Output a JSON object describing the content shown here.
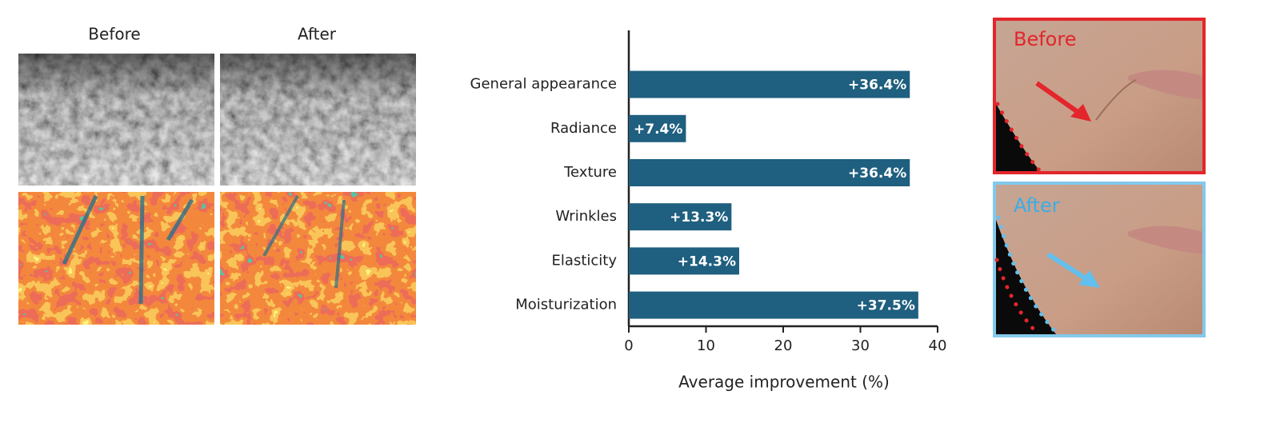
{
  "left_panel": {
    "labels": [
      "Before",
      "After"
    ]
  },
  "chart_data": {
    "type": "bar",
    "orientation": "horizontal",
    "categories": [
      "General appearance",
      "Radiance",
      "Texture",
      "Wrinkles",
      "Elasticity",
      "Moisturization"
    ],
    "values": [
      36.4,
      7.4,
      36.4,
      13.3,
      14.3,
      37.5
    ],
    "value_labels": [
      "+36.4%",
      "+7.4%",
      "+36.4%",
      "+13.3%",
      "+14.3%",
      "+37.5%"
    ],
    "color": "#1f5f7f",
    "xlabel": "Average improvement (%)",
    "xlim": [
      0,
      40
    ],
    "xticks": [
      0,
      10,
      20,
      30,
      40
    ],
    "grid": false
  },
  "right_panel": {
    "labels": [
      "Before",
      "After"
    ]
  }
}
